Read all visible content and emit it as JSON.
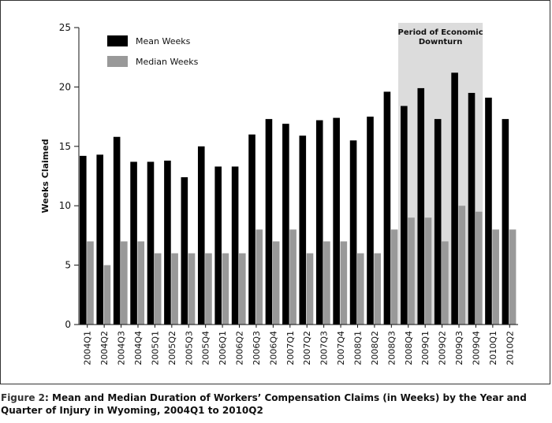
{
  "caption": {
    "label": "Figure 2",
    "text": ": Mean and Median Duration of Workers’ Compensation Claims (in Weeks) by the Year and Quarter of Injury in Wyoming, 2004Q1 to 2010Q2"
  },
  "chart_data": {
    "type": "bar",
    "title": "",
    "xlabel": "",
    "ylabel": "Weeks Claimed",
    "ylim": [
      0,
      25
    ],
    "yticks": [
      0,
      5,
      10,
      15,
      20,
      25
    ],
    "categories": [
      "2004Q1",
      "2004Q2",
      "2004Q3",
      "2004Q4",
      "2005Q1",
      "2005Q2",
      "2005Q3",
      "2005Q4",
      "2006Q1",
      "2006Q2",
      "2006Q3",
      "2006Q4",
      "2007Q1",
      "2007Q2",
      "2007Q3",
      "2007Q4",
      "2008Q1",
      "2008Q2",
      "2008Q3",
      "2008Q4",
      "2009Q1",
      "2009Q2",
      "2009Q3",
      "2009Q4",
      "2010Q1",
      "2010Q2"
    ],
    "series": [
      {
        "name": "Mean Weeks",
        "color": "#000000",
        "values": [
          14.2,
          14.3,
          15.8,
          13.7,
          13.7,
          13.8,
          12.4,
          15.0,
          13.3,
          13.3,
          16.0,
          17.3,
          16.9,
          15.9,
          17.2,
          17.4,
          15.5,
          17.5,
          19.6,
          18.4,
          19.9,
          17.3,
          21.2,
          19.5,
          19.1,
          17.3
        ]
      },
      {
        "name": "Median Weeks",
        "color": "#999999",
        "values": [
          7,
          5,
          7,
          7,
          6,
          6,
          6,
          6,
          6,
          6,
          8,
          7,
          8,
          6,
          7,
          7,
          6,
          6,
          8,
          9,
          9,
          7,
          10,
          9.5,
          8,
          8
        ]
      }
    ],
    "legend_position": "top-left",
    "annotation": {
      "lines": [
        "Period of Economic",
        "Downturn"
      ],
      "start_category": "2008Q4",
      "end_category": "2009Q4",
      "color": "#dcdcdc"
    }
  }
}
